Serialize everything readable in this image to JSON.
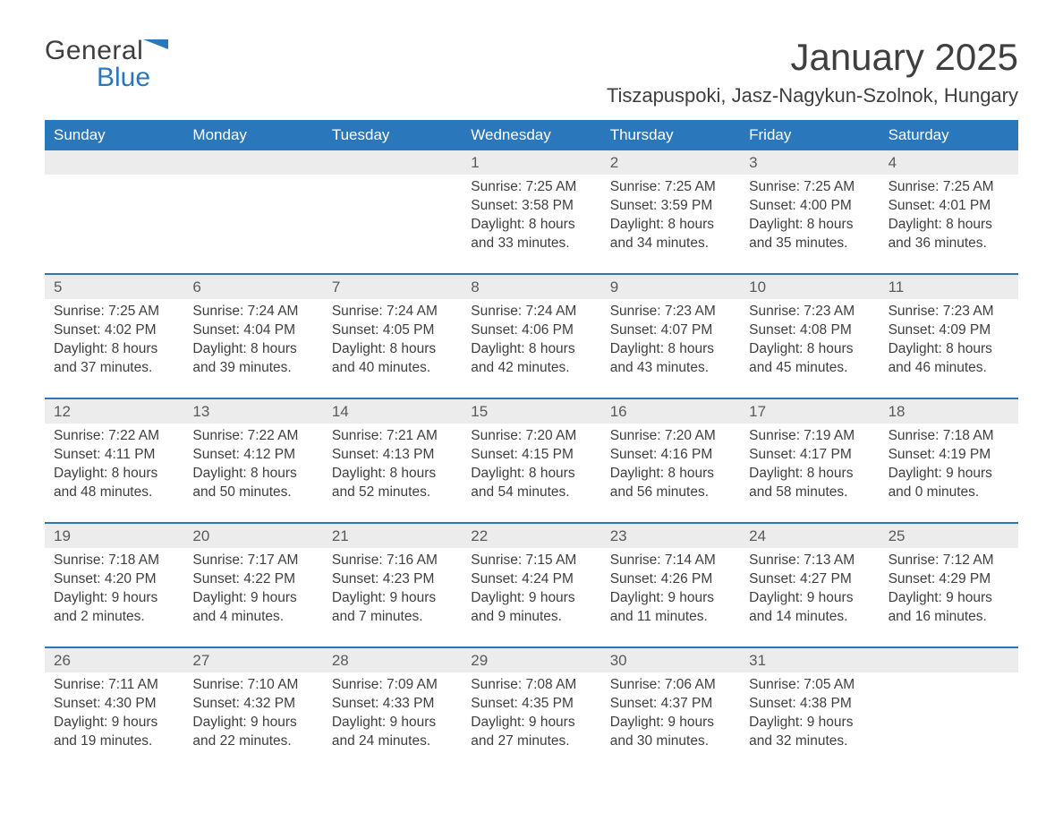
{
  "logo": {
    "general": "General",
    "blue": "Blue"
  },
  "title": "January 2025",
  "location": "Tiszapuspoki, Jasz-Nagykun-Szolnok, Hungary",
  "colors": {
    "brand_blue": "#2b77bb",
    "header_row_bg": "#ececec",
    "text": "#3f3f3f",
    "bg": "#ffffff"
  },
  "fonts": {
    "title_size": 42,
    "location_size": 22,
    "weekday_size": 17,
    "daynum_size": 17,
    "body_size": 15.5
  },
  "weekdays": [
    "Sunday",
    "Monday",
    "Tuesday",
    "Wednesday",
    "Thursday",
    "Friday",
    "Saturday"
  ],
  "weeks": [
    [
      null,
      null,
      null,
      {
        "n": "1",
        "sunrise": "Sunrise: 7:25 AM",
        "sunset": "Sunset: 3:58 PM",
        "d1": "Daylight: 8 hours",
        "d2": "and 33 minutes."
      },
      {
        "n": "2",
        "sunrise": "Sunrise: 7:25 AM",
        "sunset": "Sunset: 3:59 PM",
        "d1": "Daylight: 8 hours",
        "d2": "and 34 minutes."
      },
      {
        "n": "3",
        "sunrise": "Sunrise: 7:25 AM",
        "sunset": "Sunset: 4:00 PM",
        "d1": "Daylight: 8 hours",
        "d2": "and 35 minutes."
      },
      {
        "n": "4",
        "sunrise": "Sunrise: 7:25 AM",
        "sunset": "Sunset: 4:01 PM",
        "d1": "Daylight: 8 hours",
        "d2": "and 36 minutes."
      }
    ],
    [
      {
        "n": "5",
        "sunrise": "Sunrise: 7:25 AM",
        "sunset": "Sunset: 4:02 PM",
        "d1": "Daylight: 8 hours",
        "d2": "and 37 minutes."
      },
      {
        "n": "6",
        "sunrise": "Sunrise: 7:24 AM",
        "sunset": "Sunset: 4:04 PM",
        "d1": "Daylight: 8 hours",
        "d2": "and 39 minutes."
      },
      {
        "n": "7",
        "sunrise": "Sunrise: 7:24 AM",
        "sunset": "Sunset: 4:05 PM",
        "d1": "Daylight: 8 hours",
        "d2": "and 40 minutes."
      },
      {
        "n": "8",
        "sunrise": "Sunrise: 7:24 AM",
        "sunset": "Sunset: 4:06 PM",
        "d1": "Daylight: 8 hours",
        "d2": "and 42 minutes."
      },
      {
        "n": "9",
        "sunrise": "Sunrise: 7:23 AM",
        "sunset": "Sunset: 4:07 PM",
        "d1": "Daylight: 8 hours",
        "d2": "and 43 minutes."
      },
      {
        "n": "10",
        "sunrise": "Sunrise: 7:23 AM",
        "sunset": "Sunset: 4:08 PM",
        "d1": "Daylight: 8 hours",
        "d2": "and 45 minutes."
      },
      {
        "n": "11",
        "sunrise": "Sunrise: 7:23 AM",
        "sunset": "Sunset: 4:09 PM",
        "d1": "Daylight: 8 hours",
        "d2": "and 46 minutes."
      }
    ],
    [
      {
        "n": "12",
        "sunrise": "Sunrise: 7:22 AM",
        "sunset": "Sunset: 4:11 PM",
        "d1": "Daylight: 8 hours",
        "d2": "and 48 minutes."
      },
      {
        "n": "13",
        "sunrise": "Sunrise: 7:22 AM",
        "sunset": "Sunset: 4:12 PM",
        "d1": "Daylight: 8 hours",
        "d2": "and 50 minutes."
      },
      {
        "n": "14",
        "sunrise": "Sunrise: 7:21 AM",
        "sunset": "Sunset: 4:13 PM",
        "d1": "Daylight: 8 hours",
        "d2": "and 52 minutes."
      },
      {
        "n": "15",
        "sunrise": "Sunrise: 7:20 AM",
        "sunset": "Sunset: 4:15 PM",
        "d1": "Daylight: 8 hours",
        "d2": "and 54 minutes."
      },
      {
        "n": "16",
        "sunrise": "Sunrise: 7:20 AM",
        "sunset": "Sunset: 4:16 PM",
        "d1": "Daylight: 8 hours",
        "d2": "and 56 minutes."
      },
      {
        "n": "17",
        "sunrise": "Sunrise: 7:19 AM",
        "sunset": "Sunset: 4:17 PM",
        "d1": "Daylight: 8 hours",
        "d2": "and 58 minutes."
      },
      {
        "n": "18",
        "sunrise": "Sunrise: 7:18 AM",
        "sunset": "Sunset: 4:19 PM",
        "d1": "Daylight: 9 hours",
        "d2": "and 0 minutes."
      }
    ],
    [
      {
        "n": "19",
        "sunrise": "Sunrise: 7:18 AM",
        "sunset": "Sunset: 4:20 PM",
        "d1": "Daylight: 9 hours",
        "d2": "and 2 minutes."
      },
      {
        "n": "20",
        "sunrise": "Sunrise: 7:17 AM",
        "sunset": "Sunset: 4:22 PM",
        "d1": "Daylight: 9 hours",
        "d2": "and 4 minutes."
      },
      {
        "n": "21",
        "sunrise": "Sunrise: 7:16 AM",
        "sunset": "Sunset: 4:23 PM",
        "d1": "Daylight: 9 hours",
        "d2": "and 7 minutes."
      },
      {
        "n": "22",
        "sunrise": "Sunrise: 7:15 AM",
        "sunset": "Sunset: 4:24 PM",
        "d1": "Daylight: 9 hours",
        "d2": "and 9 minutes."
      },
      {
        "n": "23",
        "sunrise": "Sunrise: 7:14 AM",
        "sunset": "Sunset: 4:26 PM",
        "d1": "Daylight: 9 hours",
        "d2": "and 11 minutes."
      },
      {
        "n": "24",
        "sunrise": "Sunrise: 7:13 AM",
        "sunset": "Sunset: 4:27 PM",
        "d1": "Daylight: 9 hours",
        "d2": "and 14 minutes."
      },
      {
        "n": "25",
        "sunrise": "Sunrise: 7:12 AM",
        "sunset": "Sunset: 4:29 PM",
        "d1": "Daylight: 9 hours",
        "d2": "and 16 minutes."
      }
    ],
    [
      {
        "n": "26",
        "sunrise": "Sunrise: 7:11 AM",
        "sunset": "Sunset: 4:30 PM",
        "d1": "Daylight: 9 hours",
        "d2": "and 19 minutes."
      },
      {
        "n": "27",
        "sunrise": "Sunrise: 7:10 AM",
        "sunset": "Sunset: 4:32 PM",
        "d1": "Daylight: 9 hours",
        "d2": "and 22 minutes."
      },
      {
        "n": "28",
        "sunrise": "Sunrise: 7:09 AM",
        "sunset": "Sunset: 4:33 PM",
        "d1": "Daylight: 9 hours",
        "d2": "and 24 minutes."
      },
      {
        "n": "29",
        "sunrise": "Sunrise: 7:08 AM",
        "sunset": "Sunset: 4:35 PM",
        "d1": "Daylight: 9 hours",
        "d2": "and 27 minutes."
      },
      {
        "n": "30",
        "sunrise": "Sunrise: 7:06 AM",
        "sunset": "Sunset: 4:37 PM",
        "d1": "Daylight: 9 hours",
        "d2": "and 30 minutes."
      },
      {
        "n": "31",
        "sunrise": "Sunrise: 7:05 AM",
        "sunset": "Sunset: 4:38 PM",
        "d1": "Daylight: 9 hours",
        "d2": "and 32 minutes."
      },
      null
    ]
  ]
}
